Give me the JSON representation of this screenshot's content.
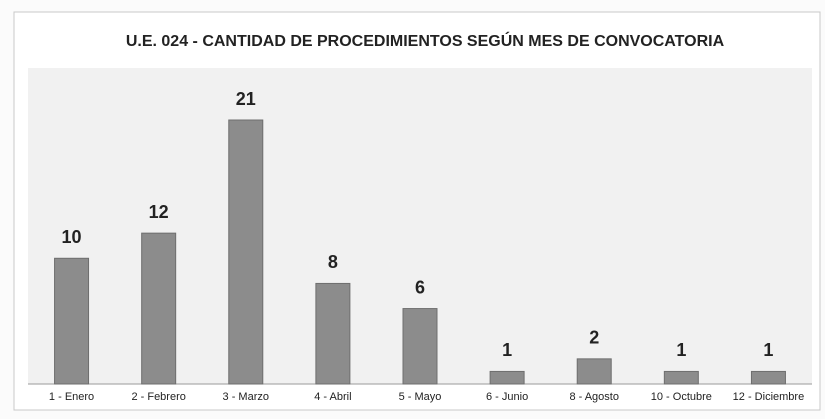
{
  "chart_data": {
    "type": "bar",
    "title": "U.E. 024 - CANTIDAD DE PROCEDIMIENTOS SEGÚN MES DE CONVOCATORIA",
    "categories": [
      "1 - Enero",
      "2 - Febrero",
      "3 - Marzo",
      "4 - Abril",
      "5 - Mayo",
      "6 - Junio",
      "8 - Agosto",
      "10 - Octubre",
      "12 - Diciembre"
    ],
    "values": [
      10,
      12,
      21,
      8,
      6,
      1,
      2,
      1,
      1
    ],
    "color": "#8c8c8c"
  }
}
